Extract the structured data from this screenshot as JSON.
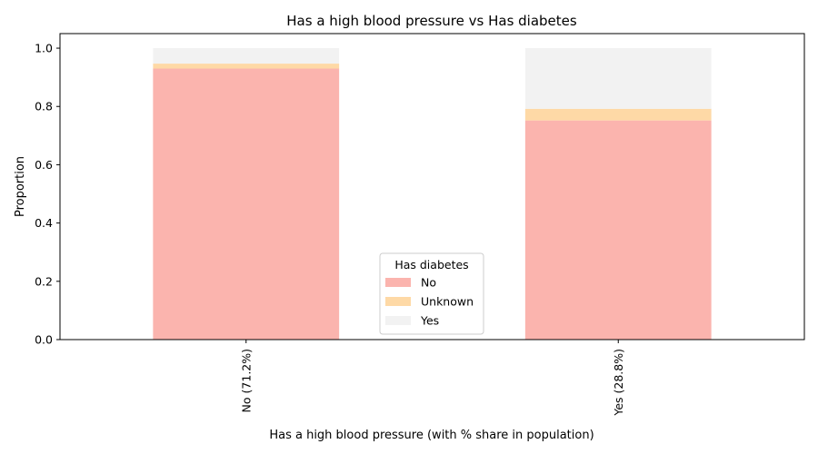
{
  "chart_data": {
    "type": "bar",
    "stacked": true,
    "title": "Has a high blood pressure vs Has diabetes",
    "xlabel": "Has a high blood pressure (with % share in population)",
    "ylabel": "Proportion",
    "categories": [
      "No (71.2%)",
      "Yes (28.8%)"
    ],
    "series": [
      {
        "name": "No",
        "values": [
          0.93,
          0.752
        ],
        "color": "#fbb4ae"
      },
      {
        "name": "Unknown",
        "values": [
          0.017,
          0.04
        ],
        "color": "#fed9a6"
      },
      {
        "name": "Yes",
        "values": [
          0.053,
          0.208
        ],
        "color": "#f2f2f2"
      }
    ],
    "ylim": [
      0,
      1.05
    ],
    "yticks": [
      "0.0",
      "0.2",
      "0.4",
      "0.6",
      "0.8",
      "1.0"
    ],
    "ytick_values": [
      0,
      0.2,
      0.4,
      0.6,
      0.8,
      1.0
    ],
    "legend": {
      "title": "Has diabetes",
      "placement": "bottom-center"
    },
    "grid": false
  }
}
